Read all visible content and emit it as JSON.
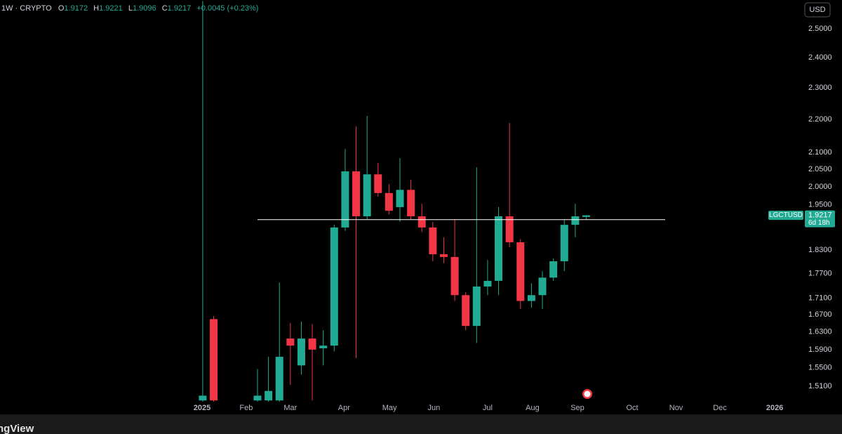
{
  "chart_data": {
    "type": "candlestick",
    "header": {
      "symbol": "1W · CRYPTO",
      "open_label": "O",
      "high_label": "H",
      "low_label": "L",
      "close_label": "C",
      "change": "+0.0045 (+0.23%)"
    },
    "currency": "USD",
    "ticker": "LGCTUSD",
    "countdown": "6d 18h",
    "footer": "ngView",
    "up_color": "#22ab94",
    "down_color": "#f23645",
    "log_scale": true,
    "grid": false,
    "xlim": [
      -18.5,
      54.5
    ],
    "ylim": [
      1.4774,
      2.6036
    ],
    "yticks": [
      {
        "value": 2.5,
        "label": "2.5000"
      },
      {
        "value": 2.4,
        "label": "2.4000"
      },
      {
        "value": 2.3,
        "label": "2.3000"
      },
      {
        "value": 2.2,
        "label": "2.2000"
      },
      {
        "value": 2.1,
        "label": "2.1000"
      },
      {
        "value": 2.05,
        "label": "2.0500"
      },
      {
        "value": 2.0,
        "label": "2.0000"
      },
      {
        "value": 1.95,
        "label": "1.9500"
      },
      {
        "value": 1.83,
        "label": "1.8300"
      },
      {
        "value": 1.77,
        "label": "1.7700"
      },
      {
        "value": 1.71,
        "label": "1.7100"
      },
      {
        "value": 1.67,
        "label": "1.6700"
      },
      {
        "value": 1.63,
        "label": "1.6300"
      },
      {
        "value": 1.59,
        "label": "1.5900"
      },
      {
        "value": 1.55,
        "label": "1.5500"
      },
      {
        "value": 1.51,
        "label": "1.5100"
      }
    ],
    "xticks": [
      {
        "value": -0.06,
        "label": "2025"
      },
      {
        "value": 3.97,
        "label": "Feb"
      },
      {
        "value": 8.0,
        "label": "Mar"
      },
      {
        "value": 12.9,
        "label": "Apr"
      },
      {
        "value": 17.05,
        "label": "May"
      },
      {
        "value": 21.1,
        "label": "Jun"
      },
      {
        "value": 26.0,
        "label": "Jul"
      },
      {
        "value": 30.1,
        "label": "Aug"
      },
      {
        "value": 34.2,
        "label": "Sep"
      },
      {
        "value": 39.2,
        "label": "Oct"
      },
      {
        "value": 43.2,
        "label": "Nov"
      },
      {
        "value": 47.2,
        "label": "Dec"
      },
      {
        "value": 52.2,
        "label": "2026"
      }
    ],
    "candles": {
      "x": [
        0,
        1,
        5,
        6,
        7,
        8,
        9,
        10,
        11,
        12,
        13,
        14,
        15,
        16,
        17,
        18,
        19,
        20,
        21,
        22,
        23,
        24,
        25,
        26,
        27,
        28,
        29,
        30,
        31,
        32,
        33,
        34,
        35
      ],
      "open": [
        1.48,
        1.66,
        1.48,
        1.48,
        1.48,
        1.615,
        1.555,
        1.615,
        1.593,
        1.599,
        1.889,
        2.0445,
        1.919,
        2.036,
        1.983,
        1.944,
        1.992,
        1.919,
        1.889,
        1.819,
        1.812,
        1.717,
        1.644,
        1.738,
        1.752,
        1.919,
        1.85,
        1.703,
        1.717,
        1.76,
        1.801,
        1.896,
        1.9172
      ],
      "high": [
        2.6,
        1.667,
        1.547,
        1.574,
        1.748,
        1.651,
        1.654,
        1.648,
        1.634,
        1.896,
        2.11,
        2.178,
        2.211,
        2.069,
        2.008,
        2.083,
        2.02,
        1.953,
        1.904,
        1.863,
        1.911,
        1.724,
        2.056,
        1.804,
        1.944,
        2.189,
        1.858,
        1.746,
        1.776,
        1.808,
        1.911,
        1.953,
        1.9221
      ],
      "low": [
        1.4774,
        1.4774,
        1.4774,
        1.4774,
        1.4774,
        1.513,
        1.535,
        1.48,
        1.555,
        1.586,
        1.88,
        1.571,
        1.911,
        1.973,
        1.924,
        1.904,
        1.911,
        1.877,
        1.801,
        1.796,
        1.703,
        1.634,
        1.605,
        1.717,
        1.717,
        1.837,
        1.684,
        1.687,
        1.684,
        1.752,
        1.776,
        1.863,
        1.9096
      ],
      "close": [
        1.49,
        1.48,
        1.49,
        1.5,
        1.574,
        1.599,
        1.615,
        1.59,
        1.599,
        1.889,
        2.0445,
        1.919,
        2.036,
        1.983,
        1.934,
        1.992,
        1.919,
        1.889,
        1.819,
        1.812,
        1.717,
        1.644,
        1.738,
        1.752,
        1.919,
        1.85,
        1.703,
        1.717,
        1.76,
        1.801,
        1.896,
        1.919,
        1.9217
      ]
    },
    "hline": {
      "value": 1.91,
      "x": [
        5.0,
        42.2
      ],
      "color": "#ffffff"
    }
  }
}
